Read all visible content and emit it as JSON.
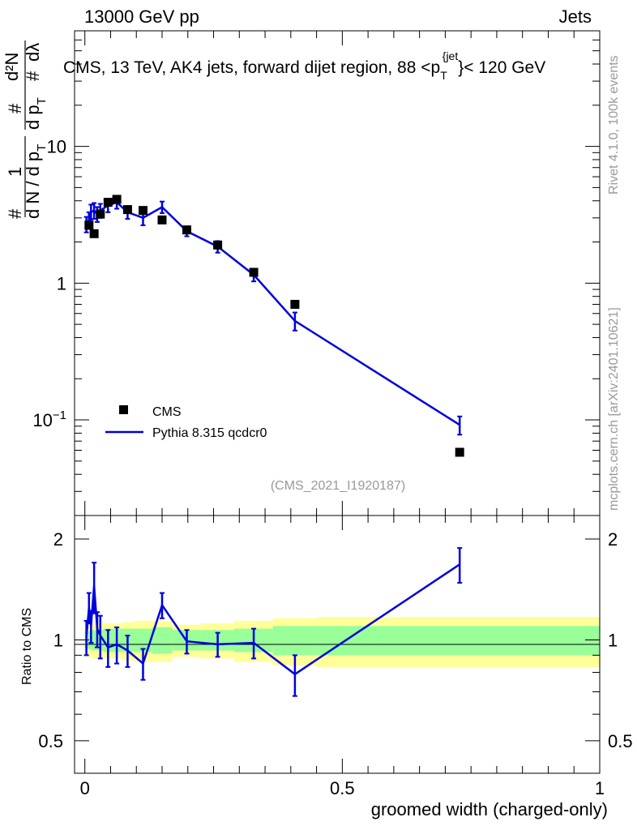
{
  "header": {
    "left": "13000 GeV pp",
    "right": "Jets"
  },
  "side_texts": {
    "rivet": "Rivet 4.1.0,  100k events",
    "mcplots": "mcplots.cern.ch [arXiv:2401.10621]"
  },
  "chart_data": [
    {
      "type": "scatter",
      "panel": "main",
      "title": "CMS, 13 TeV, AK4 jets, forward dijet region, 88 <p_T^{jet}< 120 GeV",
      "title_parts": {
        "main": "CMS, 13 TeV, AK4 jets, forward dijet region, 88 <p",
        "sub": "T",
        "sup": "{jet",
        "tail": "}< 120 GeV"
      },
      "ylabel": "1/(dN/dp_T) d²N/(dp_T dλ)",
      "ylabel_parts": {
        "numerator": "1",
        "denominator": "d N / d p",
        "denominator_sub": "T",
        "d2n": "d²N",
        "dpt": "d p",
        "dpt_sub": "T",
        "dlambda": "dλ",
        "hash": "#"
      },
      "yscale": "log",
      "ylim": [
        0.02,
        70
      ],
      "yticks": [
        {
          "value": 0.1,
          "base": "10",
          "exp": "−1"
        },
        {
          "value": 1,
          "label": "1"
        },
        {
          "value": 10,
          "label": "10"
        }
      ],
      "xlim": [
        -0.02,
        1.0
      ],
      "annotation": "(CMS_2021_I1920187)",
      "legend": {
        "position": "bottom-left",
        "entries": [
          {
            "name": "CMS",
            "style": "marker"
          },
          {
            "name": "Pythia 8.315 qcdcr0",
            "style": "line"
          }
        ]
      },
      "series": [
        {
          "name": "CMS",
          "x": [
            0.008,
            0.018,
            0.03,
            0.045,
            0.062,
            0.083,
            0.113,
            0.15,
            0.198,
            0.258,
            0.328,
            0.408,
            0.728
          ],
          "values": [
            2.65,
            2.3,
            3.2,
            3.9,
            4.1,
            3.45,
            3.4,
            2.9,
            2.45,
            1.9,
            1.2,
            0.7,
            0.058
          ]
        },
        {
          "name": "Pythia 8.315 qcdcr0",
          "x": [
            0.003,
            0.008,
            0.012,
            0.018,
            0.024,
            0.03,
            0.045,
            0.062,
            0.083,
            0.113,
            0.15,
            0.198,
            0.258,
            0.328,
            0.408,
            0.728
          ],
          "values": [
            2.7,
            2.9,
            3.3,
            3.4,
            3.2,
            3.4,
            3.7,
            3.9,
            3.3,
            3.0,
            3.6,
            2.4,
            1.85,
            1.15,
            0.53,
            0.092
          ],
          "err": [
            0.35,
            0.4,
            0.45,
            0.45,
            0.4,
            0.4,
            0.4,
            0.4,
            0.35,
            0.35,
            0.35,
            0.2,
            0.18,
            0.12,
            0.08,
            0.014
          ]
        }
      ]
    },
    {
      "type": "line",
      "panel": "ratio",
      "ylabel": "Ratio to CMS",
      "xlabel": "groomed width (charged-only)",
      "ylim": [
        0.4,
        2.35
      ],
      "yticks": [
        0.5,
        1,
        2
      ],
      "yticklabels": [
        "0.5",
        "1",
        "2"
      ],
      "xticks": [
        0,
        0.5,
        1
      ],
      "xticklabels": [
        "0",
        "0.5",
        "1"
      ],
      "xlim": [
        -0.02,
        1.0
      ],
      "uncertainty_bands": {
        "edges": [
          0.0,
          0.012,
          0.024,
          0.036,
          0.054,
          0.072,
          0.095,
          0.13,
          0.17,
          0.225,
          0.29,
          0.365,
          0.45,
          1.0
        ],
        "inner": [
          0.06,
          0.07,
          0.07,
          0.08,
          0.08,
          0.08,
          0.08,
          0.09,
          0.07,
          0.07,
          0.08,
          0.1,
          0.1
        ],
        "outer": [
          0.11,
          0.12,
          0.12,
          0.12,
          0.12,
          0.13,
          0.14,
          0.14,
          0.11,
          0.12,
          0.14,
          0.16,
          0.17
        ],
        "inner_color": "#99ff99",
        "outer_color": "#ffff99"
      },
      "series": [
        {
          "name": "Pythia 8.315 qcdcr0 / CMS",
          "x": [
            0.003,
            0.008,
            0.012,
            0.018,
            0.024,
            0.03,
            0.045,
            0.062,
            0.083,
            0.113,
            0.15,
            0.198,
            0.258,
            0.328,
            0.408,
            0.728
          ],
          "values": [
            1.02,
            1.25,
            1.1,
            1.45,
            1.08,
            1.03,
            0.95,
            0.97,
            0.93,
            0.85,
            1.27,
            0.99,
            0.97,
            0.98,
            0.79,
            1.68
          ],
          "err": [
            0.12,
            0.13,
            0.12,
            0.25,
            0.13,
            0.15,
            0.12,
            0.12,
            0.1,
            0.09,
            0.11,
            0.08,
            0.08,
            0.1,
            0.11,
            0.2
          ]
        }
      ]
    }
  ],
  "colors": {
    "mc_line": "#0000dd",
    "data_marker": "#000000",
    "axis": "#000000",
    "annotation": "#999999"
  }
}
